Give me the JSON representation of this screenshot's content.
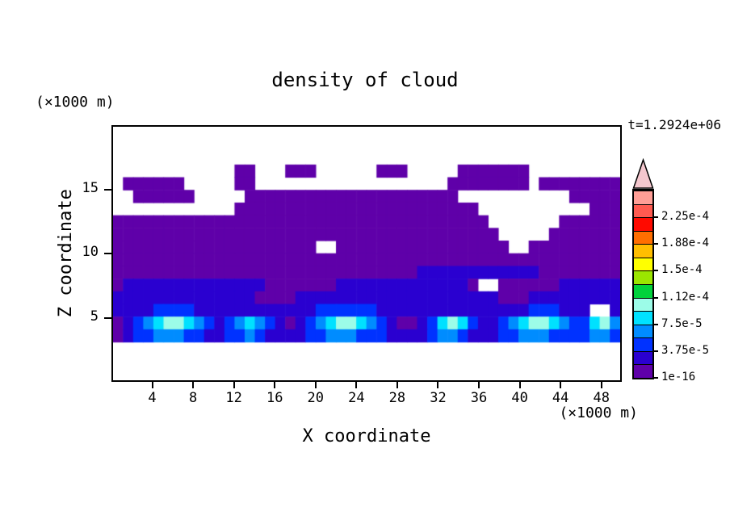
{
  "chart_data": {
    "type": "heatmap",
    "title": "density of cloud",
    "time": "t=1.2924e+06",
    "xlabel": "X coordinate",
    "ylabel": "Z coordinate",
    "x_unit": "(×1000 m)",
    "y_unit": "(×1000 m)",
    "xlim": [
      0,
      50
    ],
    "ylim": [
      0,
      20
    ],
    "x_ticks": [
      4,
      8,
      12,
      16,
      20,
      24,
      28,
      32,
      36,
      40,
      44,
      48
    ],
    "y_ticks": [
      5,
      10,
      15
    ],
    "grid": false,
    "legend": "colorbar-right",
    "colorbar": {
      "segment_colors": [
        "#5f00a9",
        "#2a00d0",
        "#0032ff",
        "#008cff",
        "#00e1ff",
        "#9cfce8",
        "#00d23c",
        "#9be600",
        "#ffff00",
        "#ffbe00",
        "#ff6e00",
        "#ff0a00",
        "#ff5a50",
        "#ff9e96"
      ],
      "arrow_color": "#f4c7ce",
      "tick_labels": [
        {
          "label": "2.25e-4",
          "boundary": 12
        },
        {
          "label": "1.88e-4",
          "boundary": 10
        },
        {
          "label": "1.5e-4",
          "boundary": 8
        },
        {
          "label": "1.12e-4",
          "boundary": 6
        },
        {
          "label": "7.5e-5",
          "boundary": 4
        },
        {
          "label": "3.75e-5",
          "boundary": 2
        },
        {
          "label": "1e-16",
          "boundary": 0
        }
      ]
    },
    "field": {
      "encoding": "rows top to bottom over z 20..0, 50 columns over x 0..50; each char is the colorbar bin index of the cell (0 = blank/below 1e-16)",
      "cells": [
        "00000000000000000000000000000000000000000000000000",
        "00000000000000000000000000000000000000000000000000",
        "00000000000000000000000000000000000000000000000000",
        "00000000000011000111000000111000001111111000000000",
        "01111110000011000000000000000000011111111011111111",
        "00111111000001111111111111111111110000000000011111",
        "00000000000011111111111111111111111100000000000111",
        "11111111111111111111111111111111111110000000111111",
        "11111111111111111111111111111111111111000001111111",
        "11111111111111111111001111111111111111100111111111",
        "11111111111111111111111111111111111111111111111111",
        "11111111111111111111111111111122222222222211111111",
        "12222222222222211111112222222222222100111111222222",
        "22222222222222111122222222222222222222111222222222",
        "22223333222222222222333333222222222222222333222002",
        "12345665432345432123456654321123565322345665433564",
        "12334443322334322223344433322223443222334443333443",
        "00000000000000000000000000000000000000000000000000",
        "00000000000000000000000000000000000000000000000000",
        "00000000000000000000000000000000000000000000000000"
      ]
    }
  },
  "colors": {
    "background": "#ffffff",
    "frame": "#000000",
    "text": "#000000"
  }
}
